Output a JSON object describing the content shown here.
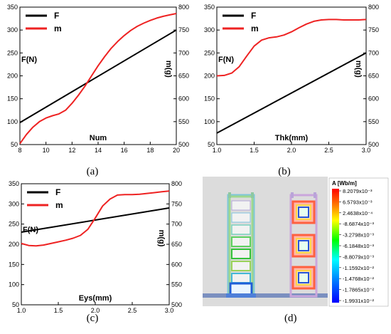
{
  "chart_data": [
    {
      "type": "line",
      "panel_label": "(a)",
      "xlabel": "Num",
      "ylabel_left": "F(N)",
      "ylabel_right": "m(g)",
      "xlim": [
        8,
        20
      ],
      "ylim_left": [
        50,
        350
      ],
      "ylim_right": [
        500,
        800
      ],
      "xticks": [
        8,
        10,
        12,
        14,
        16,
        18,
        20
      ],
      "yticks_left": [
        50,
        100,
        150,
        200,
        250,
        300,
        350
      ],
      "yticks_right": [
        500,
        550,
        600,
        650,
        700,
        750,
        800
      ],
      "legend_position": "top-left",
      "series": [
        {
          "name": "F",
          "axis": "left",
          "color": "#000000",
          "x": [
            8,
            20
          ],
          "y": [
            98,
            300
          ]
        },
        {
          "name": "m",
          "axis": "right",
          "color": "#ee2222",
          "x": [
            8,
            8.5,
            9,
            9.5,
            10,
            10.5,
            11,
            11.5,
            12,
            12.5,
            13,
            13.5,
            14,
            14.5,
            15,
            15.5,
            16,
            16.5,
            17,
            17.5,
            18,
            18.5,
            19,
            19.5,
            20
          ],
          "y": [
            502,
            522,
            538,
            550,
            558,
            563,
            567,
            575,
            590,
            608,
            628,
            650,
            672,
            692,
            710,
            725,
            738,
            749,
            758,
            765,
            771,
            776,
            780,
            783,
            786
          ]
        }
      ]
    },
    {
      "type": "line",
      "panel_label": "(b)",
      "xlabel": "Thk(mm)",
      "ylabel_left": "F(N)",
      "ylabel_right": "m(g)",
      "xlim": [
        1.0,
        3.0
      ],
      "ylim_left": [
        50,
        350
      ],
      "ylim_right": [
        500,
        800
      ],
      "xticks": [
        "1.0",
        "1.5",
        "2.0",
        "2.5",
        "3.0"
      ],
      "yticks_left": [
        50,
        100,
        150,
        200,
        250,
        300,
        350
      ],
      "yticks_right": [
        500,
        550,
        600,
        650,
        700,
        750,
        800
      ],
      "legend_position": "top-left",
      "series": [
        {
          "name": "F",
          "axis": "left",
          "color": "#000000",
          "x": [
            1.0,
            3.0
          ],
          "y": [
            75,
            250
          ]
        },
        {
          "name": "m",
          "axis": "right",
          "color": "#ee2222",
          "x": [
            1.0,
            1.1,
            1.2,
            1.3,
            1.4,
            1.5,
            1.6,
            1.7,
            1.8,
            1.9,
            2.0,
            2.1,
            2.2,
            2.3,
            2.4,
            2.5,
            2.6,
            2.7,
            2.8,
            2.9,
            3.0
          ],
          "y": [
            650,
            651,
            656,
            670,
            693,
            715,
            728,
            733,
            735,
            739,
            746,
            755,
            763,
            769,
            772,
            773,
            773,
            772,
            772,
            772,
            773
          ]
        }
      ]
    },
    {
      "type": "line",
      "panel_label": "(c)",
      "xlabel": "Eys(mm)",
      "ylabel_left": "F(N)",
      "ylabel_right": "m(g)",
      "xlim": [
        1.0,
        3.0
      ],
      "ylim_left": [
        50,
        350
      ],
      "ylim_right": [
        500,
        800
      ],
      "xticks": [
        "1.0",
        "1.5",
        "2.0",
        "2.5",
        "3.0"
      ],
      "yticks_left": [
        50,
        100,
        150,
        200,
        250,
        300,
        350
      ],
      "yticks_right": [
        500,
        550,
        600,
        650,
        700,
        750,
        800
      ],
      "legend_position": "top-left",
      "series": [
        {
          "name": "F",
          "axis": "left",
          "color": "#000000",
          "x": [
            1.0,
            3.0
          ],
          "y": [
            230,
            290
          ]
        },
        {
          "name": "m",
          "axis": "right",
          "color": "#ee2222",
          "x": [
            1.0,
            1.1,
            1.2,
            1.3,
            1.4,
            1.5,
            1.6,
            1.7,
            1.8,
            1.9,
            2.0,
            2.1,
            2.2,
            2.3,
            2.4,
            2.5,
            2.6,
            2.7,
            2.8,
            2.9,
            3.0
          ],
          "y": [
            652,
            647,
            646,
            648,
            652,
            656,
            660,
            665,
            672,
            687,
            715,
            745,
            762,
            772,
            773,
            773,
            774,
            776,
            778,
            780,
            782
          ]
        }
      ]
    }
  ],
  "field_plot": {
    "panel_label": "(d)",
    "colorbar_title": "A [Wb/m]",
    "colorbar_ticks": [
      "8.2079x10⁻³",
      "6.5793x10⁻³",
      "2.4638x10⁻⁴",
      "-8.6874x10⁻³",
      "-3.2798x10⁻³",
      "-6.1848x10⁻³",
      "-8.8079x10⁻³",
      "-1.1592x10⁻²",
      "-1.4768x10⁻²",
      "-1.7865x10⁻²",
      "-1.9931x10⁻²"
    ]
  },
  "colors": {
    "F": "#000000",
    "m": "#ee2222"
  }
}
